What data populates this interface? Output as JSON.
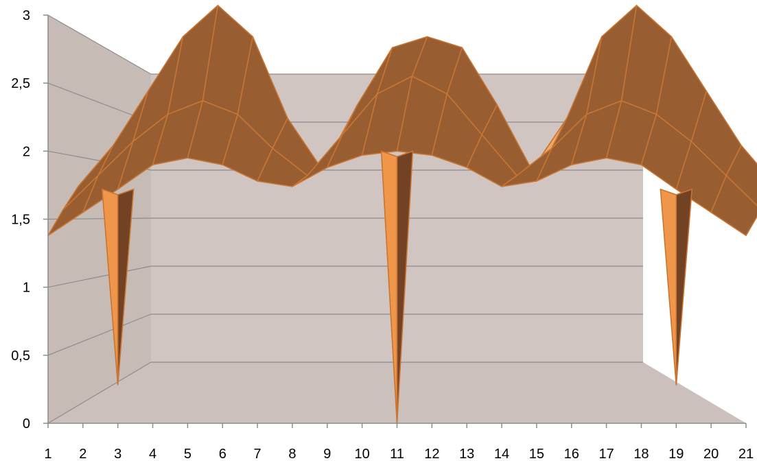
{
  "chart_data": {
    "type": "surface",
    "title": "",
    "xlabel": "",
    "ylabel": "",
    "ylim": [
      0,
      3
    ],
    "y_ticks": [
      "0",
      "0,5",
      "1",
      "1,5",
      "2",
      "2,5",
      "3"
    ],
    "categories": [
      "1",
      "2",
      "3",
      "4",
      "5",
      "6",
      "7",
      "8",
      "9",
      "10",
      "11",
      "12",
      "13",
      "14",
      "15",
      "16",
      "17",
      "18",
      "19",
      "20",
      "21"
    ],
    "series": [
      {
        "values": [
          1.38,
          1.55,
          1.72,
          1.9,
          1.95,
          1.9,
          1.78,
          1.74,
          1.88,
          1.97,
          2.0,
          1.97,
          1.88,
          1.74,
          1.78,
          1.9,
          1.95,
          1.9,
          1.72,
          1.55,
          1.38
        ]
      },
      {
        "values": [
          1.5,
          1.75,
          2.0,
          2.2,
          2.3,
          2.2,
          1.95,
          1.75,
          2.05,
          2.35,
          2.48,
          2.35,
          2.05,
          1.75,
          1.95,
          2.2,
          2.3,
          2.2,
          2.0,
          1.75,
          1.5
        ]
      },
      {
        "values": [
          1.6,
          1.9,
          2.3,
          2.7,
          2.93,
          2.7,
          2.1,
          1.72,
          2.2,
          2.62,
          2.7,
          2.62,
          2.2,
          1.72,
          2.1,
          2.7,
          2.93,
          2.7,
          2.3,
          1.9,
          1.6
        ]
      }
    ],
    "spikes": [
      {
        "category": "3",
        "value": 0.28
      },
      {
        "category": "11",
        "value": 0.0
      },
      {
        "category": "19",
        "value": 0.28
      }
    ],
    "grid": true,
    "legend": "none"
  }
}
